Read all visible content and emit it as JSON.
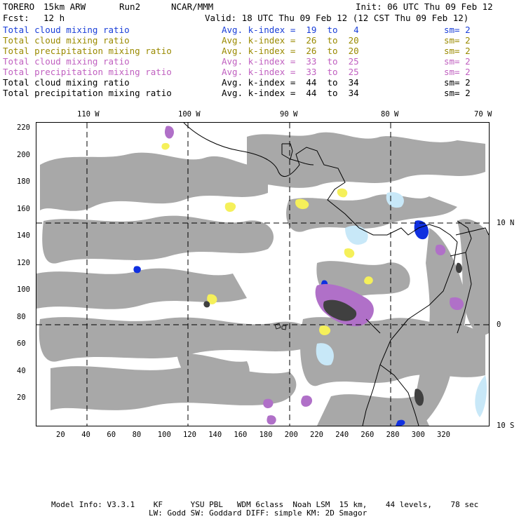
{
  "header": {
    "model": "TORERO",
    "resolution": "15km ARW",
    "run": "Run2",
    "center": "NCAR/MMM",
    "init": "Init: 06 UTC Thu 09 Feb 12",
    "fcst_label": "Fcst:",
    "fcst_value": "12 h",
    "valid": "Valid: 18 UTC Thu 09 Feb 12 (12 CST Thu 09 Feb 12)"
  },
  "legend": [
    {
      "name": "Total cloud mixing ratio",
      "kindex": "Avg. k-index =  19  to   4",
      "sm": "sm= 2",
      "color": "#1a3fd8"
    },
    {
      "name": "Total cloud mixing ratio",
      "kindex": "Avg. k-index =  26  to  20",
      "sm": "sm= 2",
      "color": "#9a8a00"
    },
    {
      "name": "Total precipitation mixing ratio",
      "kindex": "Avg. k-index =  26  to  20",
      "sm": "sm= 2",
      "color": "#9a8a00"
    },
    {
      "name": "Total cloud mixing ratio",
      "kindex": "Avg. k-index =  33  to  25",
      "sm": "sm= 2",
      "color": "#c060c0"
    },
    {
      "name": "Total precipitation mixing ratio",
      "kindex": "Avg. k-index =  33  to  25",
      "sm": "sm= 2",
      "color": "#c060c0"
    },
    {
      "name": "Total cloud mixing ratio",
      "kindex": "Avg. k-index =  44  to  34",
      "sm": "sm= 2",
      "color": "#000000"
    },
    {
      "name": "Total precipitation mixing ratio",
      "kindex": "Avg. k-index =  44  to  34",
      "sm": "sm= 2",
      "color": "#000000"
    }
  ],
  "map": {
    "lon_labels": [
      "110 W",
      "100 W",
      "90 W",
      "80 W",
      "70 W"
    ],
    "lat_labels": [
      "10 N",
      "0",
      "10 S"
    ],
    "y_ticks": [
      "220",
      "200",
      "180",
      "160",
      "140",
      "120",
      "100",
      "80",
      "60",
      "40",
      "20"
    ],
    "x_ticks": [
      "20",
      "40",
      "60",
      "80",
      "100",
      "120",
      "140",
      "160",
      "180",
      "200",
      "220",
      "240",
      "260",
      "280",
      "300",
      "320"
    ],
    "colors": {
      "cloud_gray": "#a8a8a8",
      "dark_core": "#404040",
      "yellow": "#f5f05a",
      "purple": "#b070c8",
      "blue": "#1030e0",
      "light_blue": "#c8e8f8",
      "land_line": "#000000"
    }
  },
  "footer": {
    "line1": "Model Info: V3.3.1    KF      YSU PBL   WDM 6class  Noah LSM  15 km,    44 levels,    78 sec",
    "line2": "LW: Godd SW: Goddard DIFF: simple KM: 2D Smagor"
  }
}
